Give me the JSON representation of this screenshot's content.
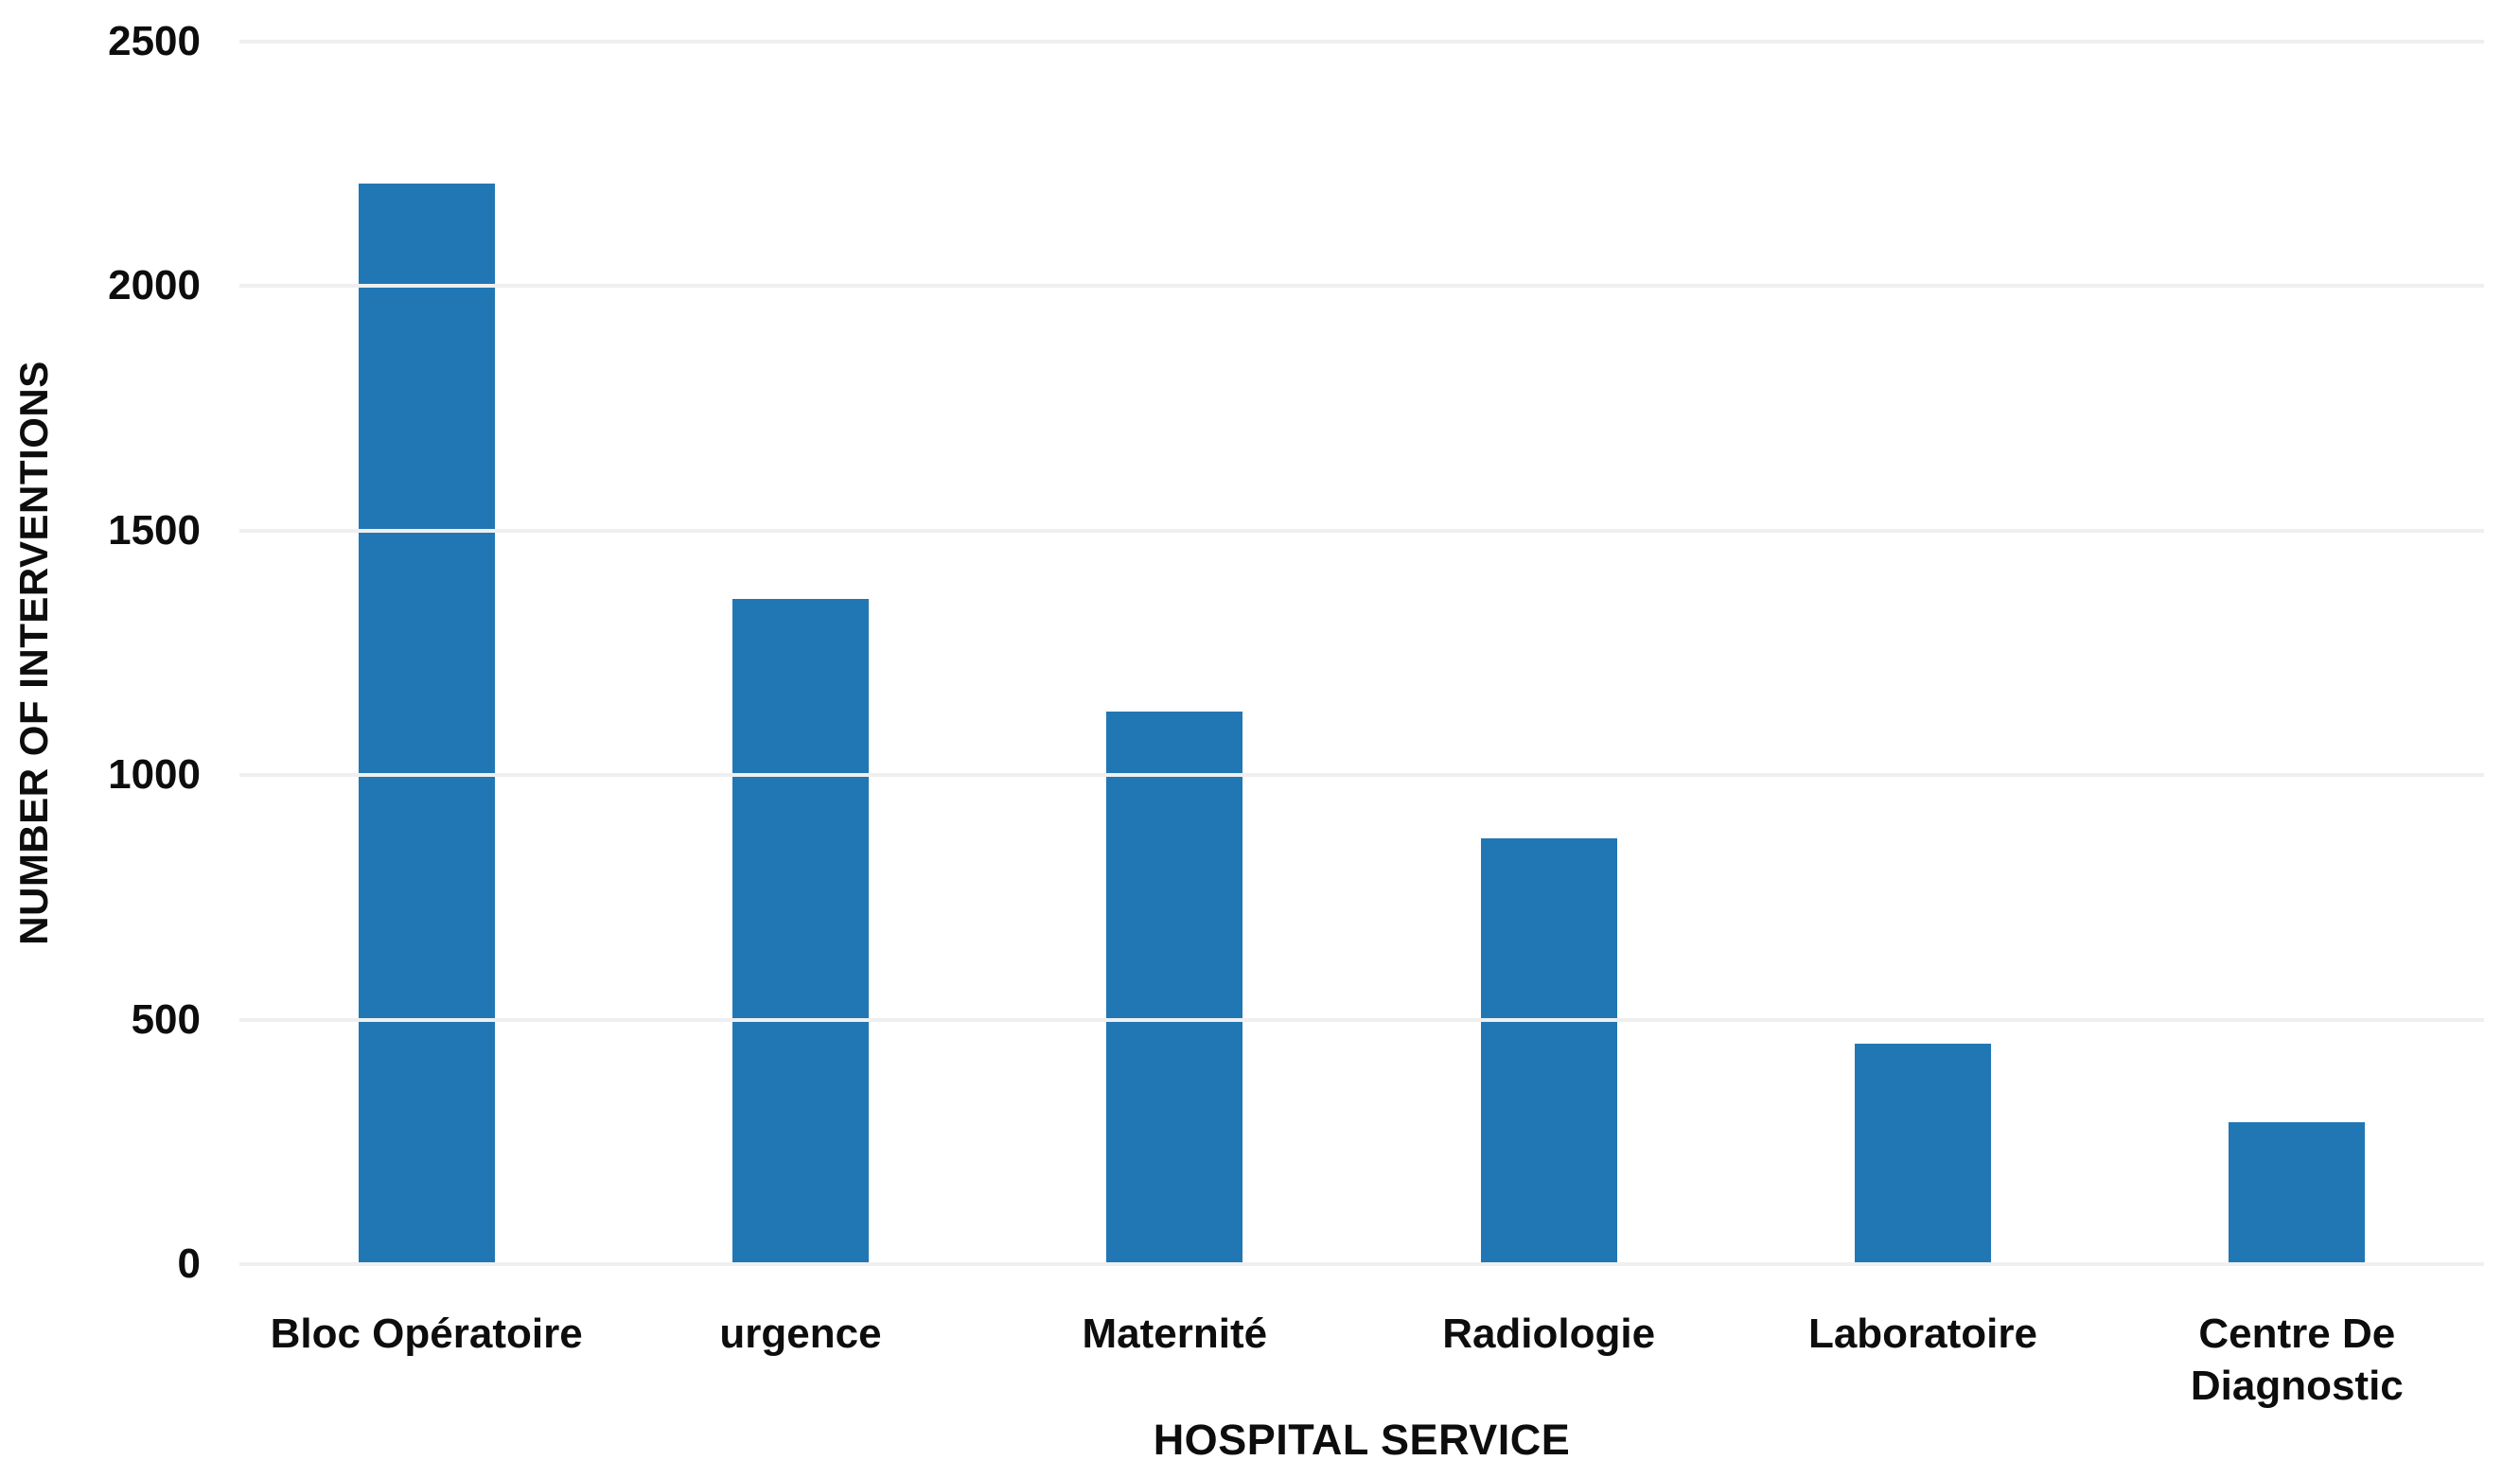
{
  "chart_data": {
    "type": "bar",
    "categories": [
      "Bloc Opératoire",
      "urgence",
      "Maternité",
      "Radiologie",
      "Laboratoire",
      "Centre De Diagnostic"
    ],
    "values": [
      2210,
      1360,
      1130,
      870,
      450,
      290
    ],
    "title": "",
    "xlabel": "HOSPITAL SERVICE",
    "ylabel": "NUMBER OF INTERVENTIONS",
    "ylim": [
      0,
      2500
    ],
    "yticks": [
      0,
      500,
      1000,
      1500,
      2000,
      2500
    ],
    "grid": true,
    "legend": "none",
    "bar_color": "#2177b4",
    "gridline_color": "#efefef",
    "text_color": "#0d0d0d",
    "background_color": "#ffffff"
  }
}
